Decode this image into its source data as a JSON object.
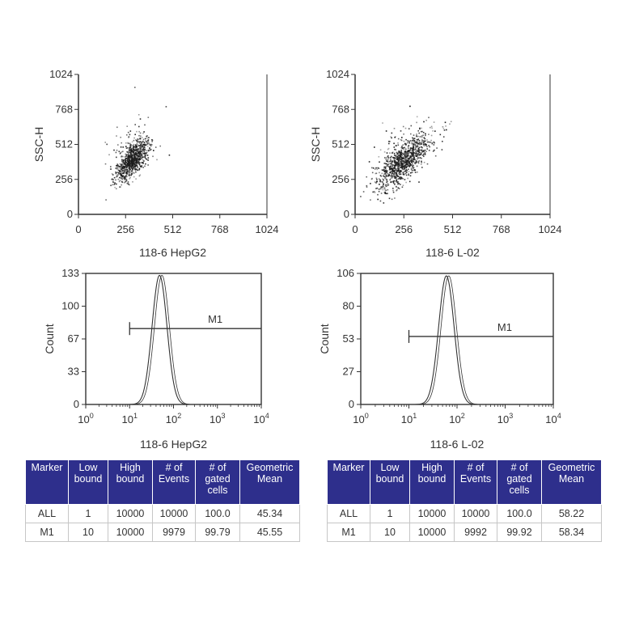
{
  "chart_data": [
    {
      "type": "scatter",
      "xlabel": "118-6 HepG2",
      "ylabel": "SSC-H",
      "xlim": [
        0,
        1024
      ],
      "ylim": [
        0,
        1024
      ],
      "xticks": [
        "0",
        "256",
        "512",
        "768",
        "1024"
      ],
      "yticks": [
        "0",
        "256",
        "512",
        "768",
        "1024"
      ],
      "cluster": {
        "center_x": 290,
        "center_y": 400,
        "slope": 1.6,
        "spread_x": 38,
        "spread_y": 48,
        "points": 900,
        "outlier_max_x": 560,
        "outlier_max_y": 980
      }
    },
    {
      "type": "scatter",
      "xlabel": "118-6 L-02",
      "ylabel": "SSC-H",
      "xlim": [
        0,
        1024
      ],
      "ylim": [
        0,
        1024
      ],
      "xticks": [
        "0",
        "256",
        "512",
        "768",
        "1024"
      ],
      "yticks": [
        "0",
        "256",
        "512",
        "768",
        "1024"
      ],
      "cluster": {
        "center_x": 250,
        "center_y": 390,
        "slope": 1.4,
        "spread_x": 60,
        "spread_y": 55,
        "points": 1000,
        "outlier_max_x": 620,
        "outlier_max_y": 1000
      }
    },
    {
      "type": "histogram",
      "xlabel": "118-6 HepG2",
      "ylabel": "Count",
      "xscale": "log",
      "xlim": [
        1,
        10000
      ],
      "ylim": [
        0,
        133
      ],
      "xticks": [
        "10",
        "10",
        "10",
        "10",
        "10"
      ],
      "xtick_exponents": [
        "0",
        "1",
        "2",
        "3",
        "4"
      ],
      "yticks": [
        "0",
        "33",
        "67",
        "100",
        "133"
      ],
      "peak_x": 48,
      "peak_count": 131,
      "log_sigma": 0.17,
      "gate": {
        "label": "M1",
        "low": 10,
        "high": 10000,
        "count_level": 77
      }
    },
    {
      "type": "histogram",
      "xlabel": "118-6 L-02",
      "ylabel": "Count",
      "xscale": "log",
      "xlim": [
        1,
        10000
      ],
      "ylim": [
        0,
        106
      ],
      "xticks": [
        "10",
        "10",
        "10",
        "10",
        "10"
      ],
      "xtick_exponents": [
        "0",
        "1",
        "2",
        "3",
        "4"
      ],
      "yticks": [
        "0",
        "27",
        "53",
        "80",
        "106"
      ],
      "peak_x": 60,
      "peak_count": 104,
      "log_sigma": 0.16,
      "gate": {
        "label": "M1",
        "low": 10,
        "high": 10000,
        "count_level": 55
      }
    }
  ],
  "tables": [
    {
      "headers": [
        "Marker",
        "Low bound",
        "High bound",
        "# of Events",
        "# of gated cells",
        "Geometric Mean"
      ],
      "rows": [
        [
          "ALL",
          "1",
          "10000",
          "10000",
          "100.0",
          "45.34"
        ],
        [
          "M1",
          "10",
          "10000",
          "9979",
          "99.79",
          "45.55"
        ]
      ]
    },
    {
      "headers": [
        "Marker",
        "Low bound",
        "High bound",
        "# of Events",
        "# of gated cells",
        "Geometric Mean"
      ],
      "rows": [
        [
          "ALL",
          "1",
          "10000",
          "10000",
          "100.0",
          "58.22"
        ],
        [
          "M1",
          "10",
          "10000",
          "9992",
          "99.92",
          "58.34"
        ]
      ]
    }
  ],
  "colors": {
    "table_header_bg": "#2e2f8c",
    "table_header_text": "#ffffff",
    "axis": "#333333",
    "dots": "#1a1a1a"
  }
}
